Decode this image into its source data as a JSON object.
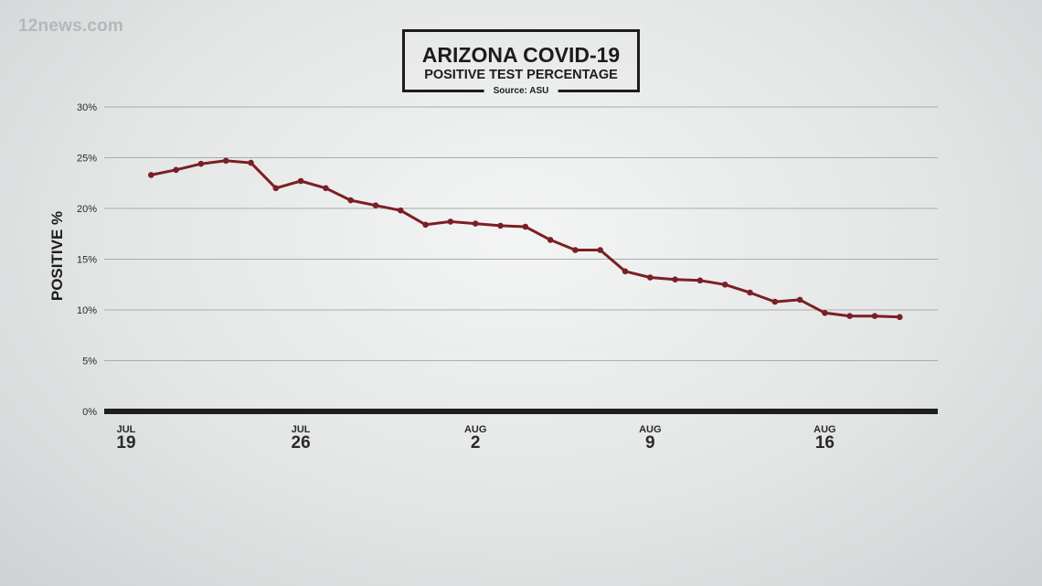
{
  "watermark": "12news.com",
  "chart_data": {
    "type": "line",
    "title": "ARIZONA COVID-19",
    "subtitle": "POSITIVE TEST PERCENTAGE",
    "source": "Source: ASU",
    "xlabel": "",
    "ylabel": "POSITIVE %",
    "ylim": [
      0,
      30
    ],
    "yticks": [
      0,
      5,
      10,
      15,
      20,
      25,
      30
    ],
    "ytick_suffix": "%",
    "grid": true,
    "line_color": "#7b1f24",
    "x_ticks": [
      {
        "month": "JUL",
        "day": "19",
        "index": 0
      },
      {
        "month": "JUL",
        "day": "26",
        "index": 7
      },
      {
        "month": "AUG",
        "day": "2",
        "index": 14
      },
      {
        "month": "AUG",
        "day": "9",
        "index": 21
      },
      {
        "month": "AUG",
        "day": "16",
        "index": 28
      }
    ],
    "x": [
      "2020-07-20",
      "2020-07-21",
      "2020-07-22",
      "2020-07-23",
      "2020-07-24",
      "2020-07-25",
      "2020-07-26",
      "2020-07-27",
      "2020-07-28",
      "2020-07-29",
      "2020-07-30",
      "2020-07-31",
      "2020-08-01",
      "2020-08-02",
      "2020-08-03",
      "2020-08-04",
      "2020-08-05",
      "2020-08-06",
      "2020-08-07",
      "2020-08-08",
      "2020-08-09",
      "2020-08-10",
      "2020-08-11",
      "2020-08-12",
      "2020-08-13",
      "2020-08-14",
      "2020-08-15",
      "2020-08-16",
      "2020-08-17",
      "2020-08-18",
      "2020-08-19"
    ],
    "values": [
      23.3,
      23.8,
      24.4,
      24.7,
      24.5,
      22.0,
      22.7,
      22.0,
      20.8,
      20.3,
      19.8,
      18.4,
      18.7,
      18.5,
      18.3,
      18.2,
      16.9,
      15.9,
      15.9,
      13.8,
      13.2,
      13.0,
      12.9,
      12.5,
      11.7,
      10.8,
      11.0,
      9.7,
      9.4,
      9.4,
      9.3
    ],
    "first_point_index": 1
  }
}
